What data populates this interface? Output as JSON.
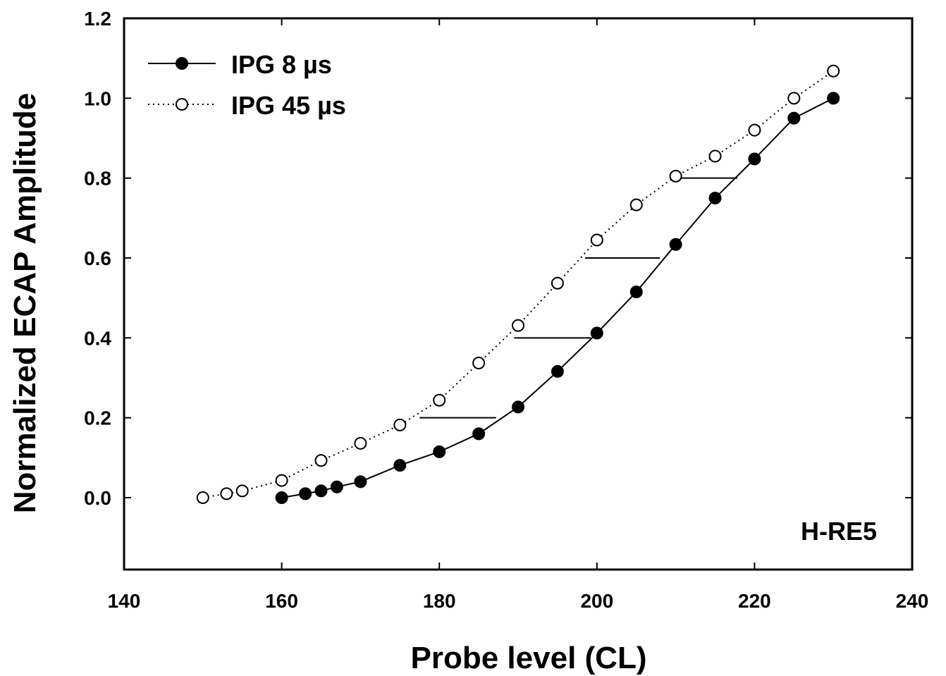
{
  "chart_data": {
    "type": "line",
    "title": "",
    "xlabel": "Probe level (CL)",
    "ylabel": "Normalized ECAP Amplitude",
    "xlim": [
      140,
      240
    ],
    "ylim": [
      -0.18,
      1.2
    ],
    "xticks": [
      140,
      160,
      180,
      200,
      220,
      240
    ],
    "xtick_labels": [
      "140",
      "160",
      "180",
      "200",
      "220",
      "240"
    ],
    "yticks": [
      0.0,
      0.2,
      0.4,
      0.6,
      0.8,
      1.0,
      1.2
    ],
    "ytick_labels": [
      "0.0",
      "0.2",
      "0.4",
      "0.6",
      "0.8",
      "1.0",
      "1.2"
    ],
    "grid": false,
    "legend_position": "top-left",
    "annotation": "H-RE5",
    "series": [
      {
        "name": "IPG 8 µs",
        "marker": "filled-circle",
        "line_style": "solid",
        "color": "#000000",
        "x": [
          160,
          163,
          165,
          167,
          170,
          175,
          180,
          185,
          190,
          195,
          200,
          205,
          210,
          215,
          220,
          225,
          230
        ],
        "y": [
          0.0,
          0.01,
          0.017,
          0.027,
          0.04,
          0.081,
          0.115,
          0.16,
          0.227,
          0.316,
          0.412,
          0.515,
          0.634,
          0.75,
          0.848,
          0.95,
          1.0
        ]
      },
      {
        "name": "IPG 45 µs",
        "marker": "open-circle",
        "line_style": "dotted",
        "color": "#000000",
        "x": [
          150,
          153,
          155,
          160,
          165,
          170,
          175,
          180,
          185,
          190,
          195,
          200,
          205,
          210,
          215,
          220,
          225,
          230
        ],
        "y": [
          0.0,
          0.01,
          0.017,
          0.043,
          0.093,
          0.136,
          0.182,
          0.244,
          0.337,
          0.431,
          0.537,
          0.645,
          0.733,
          0.805,
          0.855,
          0.92,
          1.0,
          1.068
        ]
      }
    ],
    "horizontal_segments": [
      {
        "y": 0.2,
        "x_start": 177.5,
        "x_end": 187.2
      },
      {
        "y": 0.4,
        "x_start": 189.5,
        "x_end": 199.2
      },
      {
        "y": 0.6,
        "x_start": 198.5,
        "x_end": 208.0
      },
      {
        "y": 0.8,
        "x_start": 210.5,
        "x_end": 217.8
      }
    ]
  }
}
